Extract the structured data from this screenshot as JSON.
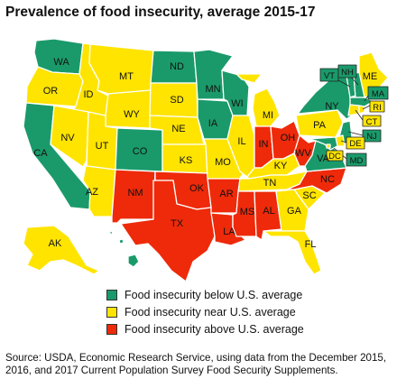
{
  "title": "Prevalence of food insecurity, average 2015-17",
  "colors": {
    "below": "#1a9a6a",
    "near": "#ffe400",
    "above": "#ee2a0a",
    "text": "#111111",
    "border": "#ffffff"
  },
  "legend": [
    {
      "category": "below",
      "label": "Food insecurity below U.S. average"
    },
    {
      "category": "near",
      "label": "Food insecurity near U.S. average"
    },
    {
      "category": "above",
      "label": "Food insecurity above U.S. average"
    }
  ],
  "states": {
    "WA": "below",
    "OR": "near",
    "CA": "below",
    "ID": "near",
    "NV": "near",
    "MT": "near",
    "WY": "near",
    "UT": "near",
    "AZ": "near",
    "CO": "below",
    "NM": "above",
    "ND": "below",
    "SD": "near",
    "NE": "near",
    "KS": "near",
    "OK": "above",
    "TX": "above",
    "MN": "below",
    "IA": "below",
    "MO": "near",
    "AR": "above",
    "LA": "above",
    "WI": "below",
    "IL": "near",
    "MI": "near",
    "IN": "above",
    "OH": "above",
    "KY": "near",
    "TN": "near",
    "MS": "above",
    "AL": "above",
    "GA": "near",
    "FL": "near",
    "SC": "near",
    "NC": "above",
    "WV": "above",
    "VA": "below",
    "PA": "near",
    "NY": "below",
    "ME": "near",
    "VT": "below",
    "NH": "below",
    "MA": "below",
    "RI": "near",
    "CT": "near",
    "NJ": "below",
    "DE": "near",
    "MD": "below",
    "DC": "near",
    "AK": "near",
    "HI": "below"
  },
  "labels": {
    "WA": "WA",
    "OR": "OR",
    "CA": "CA",
    "ID": "ID",
    "NV": "NV",
    "MT": "MT",
    "WY": "WY",
    "UT": "UT",
    "AZ": "AZ",
    "CO": "CO",
    "NM": "NM",
    "ND": "ND",
    "SD": "SD",
    "NE": "NE",
    "KS": "KS",
    "OK": "OK",
    "TX": "TX",
    "MN": "MN",
    "IA": "IA",
    "MO": "MO",
    "AR": "AR",
    "LA": "LA",
    "WI": "WI",
    "IL": "IL",
    "MI": "MI",
    "IN": "IN",
    "OH": "OH",
    "KY": "KY",
    "TN": "TN",
    "MS": "MS",
    "AL": "AL",
    "GA": "GA",
    "FL": "FL",
    "SC": "SC",
    "NC": "NC",
    "WV": "WV",
    "VA": "VA",
    "PA": "PA",
    "NY": "NY",
    "ME": "ME",
    "AK": "AK",
    "VT": "VT",
    "NH": "NH",
    "MA": "MA",
    "RI": "RI",
    "CT": "CT",
    "NJ": "NJ",
    "DE": "DE",
    "MD": "MD",
    "DC": "DC"
  },
  "source": "Source: USDA, Economic Research Service, using data from the December 2015, 2016, and 2017 Current Population Survey Food Security Supplements."
}
